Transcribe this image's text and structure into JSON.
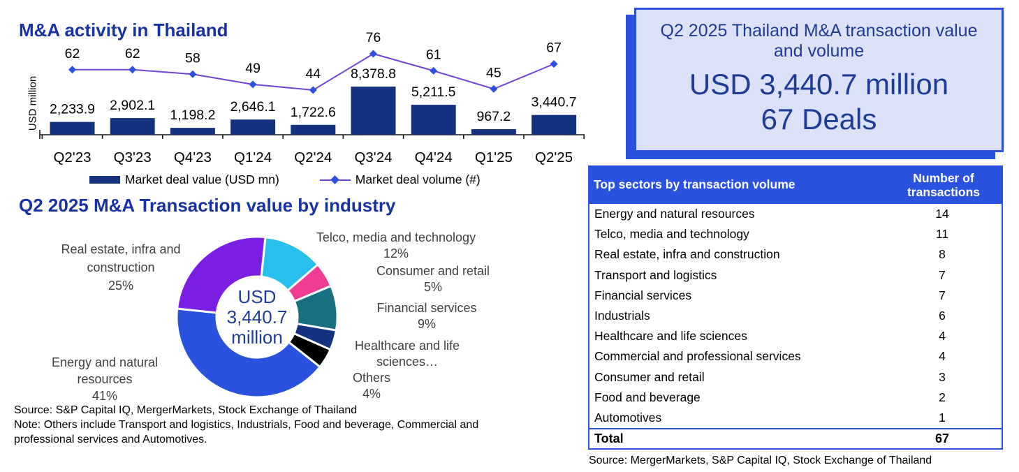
{
  "colors": {
    "accent_blue": "#2B52DE",
    "bar_navy": "#14327F",
    "title_blue": "#1733A3",
    "kpi_text_blue": "#1E3C96",
    "line_purple": "#7142D9",
    "kpi_bg_lavender": "#DBE2F8",
    "donut_label_grey": "#3F3F3F"
  },
  "chart_data": [
    {
      "id": "mna_activity",
      "type": "combo bar+line",
      "title": "M&A activity in Thailand",
      "ylabel": "USD million",
      "categories": [
        "Q2'23",
        "Q3'23",
        "Q4'23",
        "Q1'24",
        "Q2'24",
        "Q3'24",
        "Q4'24",
        "Q1'25",
        "Q2'25"
      ],
      "series": [
        {
          "name": "Market deal value (USD mn)",
          "type": "bar",
          "color": "#14327F",
          "values": [
            2233.9,
            2902.1,
            1198.2,
            2646.1,
            1722.6,
            8378.8,
            5211.5,
            967.2,
            3440.7
          ]
        },
        {
          "name": "Market deal volume (#)",
          "type": "line",
          "color": "#7142D9",
          "marker_color": "#2B52DE",
          "values": [
            62,
            62,
            58,
            49,
            44,
            76,
            61,
            45,
            67
          ]
        }
      ],
      "legend_position": "bottom",
      "grid": false
    },
    {
      "id": "value_by_industry",
      "type": "pie",
      "title": "Q2 2025 M&A Transaction value by industry",
      "center_text": [
        "USD",
        "3,440.7",
        "million"
      ],
      "slices": [
        {
          "label": "Telco, media and technology",
          "pct": 12,
          "color": "#29BFEC",
          "label_lines": [
            "Telco, media and technology",
            "12%"
          ]
        },
        {
          "label": "Consumer and retail",
          "pct": 5,
          "color": "#F03C90",
          "label_lines": [
            "Consumer and retail",
            "5%"
          ]
        },
        {
          "label": "Financial services",
          "pct": 9,
          "color": "#186F80",
          "label_lines": [
            "Financial services",
            "9%"
          ]
        },
        {
          "label": "Healthcare and life sciences",
          "pct": 4,
          "color": "#14327F",
          "label_lines": [
            "Healthcare and life",
            "sciences…"
          ]
        },
        {
          "label": "Others",
          "pct": 4,
          "color": "#000000",
          "label_lines": [
            "Others",
            "4%"
          ]
        },
        {
          "label": "Energy and natural resources",
          "pct": 41,
          "color": "#2B52DE",
          "label_lines": [
            "Energy and natural",
            "resources",
            "41%"
          ]
        },
        {
          "label": "Real estate, infra and construction",
          "pct": 25,
          "color": "#7B1EE3",
          "label_lines": [
            "Real estate, infra and",
            "construction",
            "25%"
          ]
        }
      ],
      "source": "Source: S&P Capital IQ, MergerMarkets, Stock Exchange of Thailand",
      "note": "Note: Others include Transport and logistics, Industrials, Food and beverage, Commercial and professional services and Automotives."
    },
    {
      "id": "top_sectors_table",
      "type": "table",
      "columns": [
        "Top sectors by transaction volume",
        "Number of transactions"
      ],
      "rows": [
        [
          "Energy and natural resources",
          14
        ],
        [
          "Telco, media and technology",
          11
        ],
        [
          "Real estate, infra and construction",
          8
        ],
        [
          "Transport and logistics",
          7
        ],
        [
          "Financial services",
          7
        ],
        [
          "Industrials",
          6
        ],
        [
          "Healthcare and life sciences",
          4
        ],
        [
          "Commercial and professional services",
          4
        ],
        [
          "Consumer and retail",
          3
        ],
        [
          "Food and beverage",
          2
        ],
        [
          "Automotives",
          1
        ]
      ],
      "total_label": "Total",
      "total_value": 67,
      "source": "Source: MergerMarkets, S&P Capital IQ, Stock Exchange of Thailand"
    }
  ],
  "kpi_box": {
    "title": "Q2 2025 Thailand M&A transaction value and volume",
    "value": "USD 3,440.7 million",
    "deals": "67 Deals"
  }
}
